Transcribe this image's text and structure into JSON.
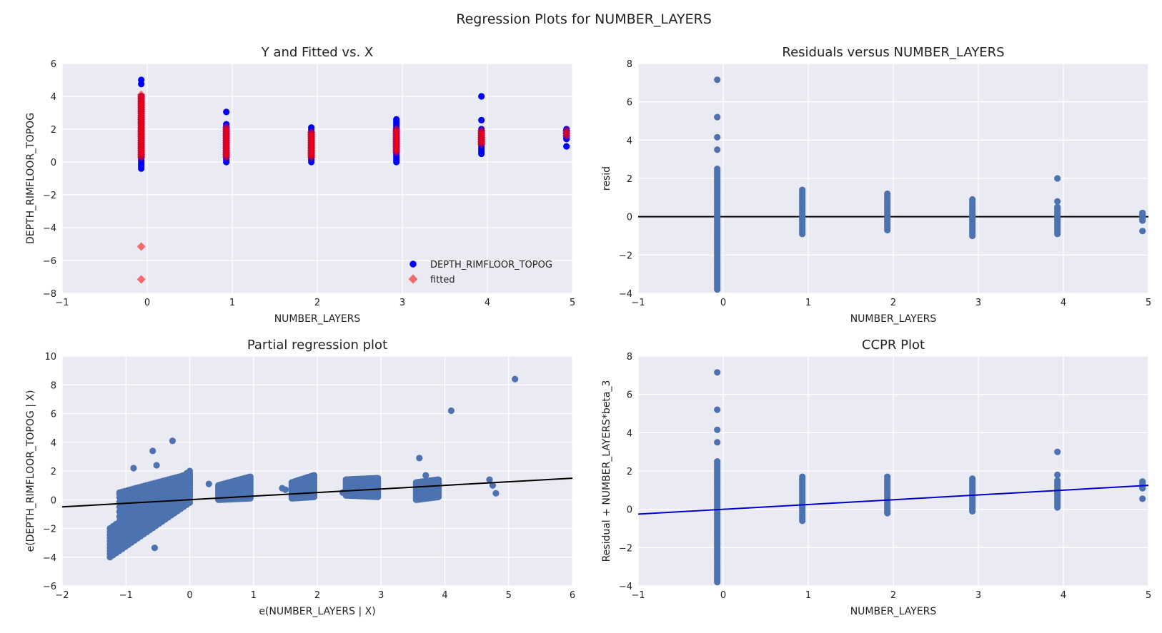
{
  "figure": {
    "title": "Regression Plots for NUMBER_LAYERS"
  },
  "colors": {
    "panel_bg": "#eaeaf2",
    "grid": "#ffffff",
    "seaborn_blue": "#4c72b0",
    "blue": "#0000ff",
    "red": "#ff0000",
    "fit_line_black": "#000000",
    "ccpr_line": "#0000cc"
  },
  "chart_data": [
    {
      "id": "y-fitted",
      "type": "scatter",
      "title": "Y and Fitted vs. X",
      "xlabel": "NUMBER_LAYERS",
      "ylabel": "DEPTH_RIMFLOOR_TOPOG",
      "xlim": [
        -1,
        5
      ],
      "ylim": [
        -8,
        6
      ],
      "xticks": [
        -1,
        0,
        1,
        2,
        3,
        4,
        5
      ],
      "yticks": [
        -8,
        -6,
        -4,
        -2,
        0,
        2,
        4,
        6
      ],
      "legend": {
        "placement": "lower-right",
        "entries": [
          "DEPTH_RIMFLOOR_TOPOG",
          "fitted"
        ]
      },
      "series": [
        {
          "name": "DEPTH_RIMFLOOR_TOPOG",
          "marker": "circle",
          "color": "#0000ff",
          "columns": [
            {
              "x": -0.07,
              "ymin": -0.4,
              "ymax": 4.0
            },
            {
              "x": 0.93,
              "ymin": 0.0,
              "ymax": 2.3
            },
            {
              "x": 1.93,
              "ymin": 0.0,
              "ymax": 2.1
            },
            {
              "x": 2.93,
              "ymin": 0.0,
              "ymax": 2.6
            },
            {
              "x": 3.93,
              "ymin": 0.5,
              "ymax": 2.0
            },
            {
              "x": 4.93,
              "ymin": 1.4,
              "ymax": 2.0
            }
          ],
          "points": [
            [
              -0.07,
              5.0
            ],
            [
              -0.07,
              4.75
            ],
            [
              0.93,
              3.05
            ],
            [
              3.93,
              4.0
            ],
            [
              3.93,
              2.55
            ],
            [
              4.93,
              0.95
            ]
          ]
        },
        {
          "name": "fitted",
          "marker": "diamond",
          "color": "#ff0000",
          "columns": [
            {
              "x": -0.07,
              "ymin": 0.3,
              "ymax": 4.1
            },
            {
              "x": 0.93,
              "ymin": 0.3,
              "ymax": 2.1
            },
            {
              "x": 1.93,
              "ymin": 0.3,
              "ymax": 1.8
            },
            {
              "x": 2.93,
              "ymin": 0.6,
              "ymax": 2.0
            },
            {
              "x": 3.93,
              "ymin": 1.1,
              "ymax": 1.9
            },
            {
              "x": 4.93,
              "ymin": 1.6,
              "ymax": 1.9
            }
          ],
          "points": [
            [
              -0.07,
              -5.15
            ],
            [
              -0.07,
              -7.15
            ]
          ]
        }
      ]
    },
    {
      "id": "residuals",
      "type": "scatter",
      "title": "Residuals versus NUMBER_LAYERS",
      "xlabel": "NUMBER_LAYERS",
      "ylabel": "resid",
      "xlim": [
        -1,
        5
      ],
      "ylim": [
        -4,
        8
      ],
      "xticks": [
        -1,
        0,
        1,
        2,
        3,
        4,
        5
      ],
      "yticks": [
        -4,
        -2,
        0,
        2,
        4,
        6,
        8
      ],
      "hline": 0,
      "series": [
        {
          "marker": "circle",
          "color": "#4c72b0",
          "columns": [
            {
              "x": -0.07,
              "ymin": -3.8,
              "ymax": 2.5
            },
            {
              "x": 0.93,
              "ymin": -0.9,
              "ymax": 1.4
            },
            {
              "x": 1.93,
              "ymin": -0.7,
              "ymax": 1.2
            },
            {
              "x": 2.93,
              "ymin": -1.0,
              "ymax": 0.9
            },
            {
              "x": 3.93,
              "ymin": -0.9,
              "ymax": 0.5
            },
            {
              "x": 4.93,
              "ymin": -0.2,
              "ymax": 0.2
            }
          ],
          "points": [
            [
              -0.07,
              7.15
            ],
            [
              -0.07,
              5.2
            ],
            [
              -0.07,
              4.15
            ],
            [
              -0.07,
              3.5
            ],
            [
              3.93,
              2.0
            ],
            [
              3.93,
              0.8
            ],
            [
              4.93,
              -0.75
            ]
          ]
        }
      ]
    },
    {
      "id": "partial-regression",
      "type": "scatter",
      "title": "Partial regression plot",
      "xlabel": "e(NUMBER_LAYERS | X)",
      "ylabel": "e(DEPTH_RIMFLOOR_TOPOG | X)",
      "xlim": [
        -2,
        6
      ],
      "ylim": [
        -6,
        10
      ],
      "xticks": [
        -2,
        -1,
        0,
        1,
        2,
        3,
        4,
        5,
        6
      ],
      "yticks": [
        -6,
        -4,
        -2,
        0,
        2,
        4,
        6,
        8,
        10
      ],
      "fit_line": {
        "x": [
          -2,
          6
        ],
        "y": [
          -0.5,
          1.5
        ]
      },
      "series": [
        {
          "marker": "circle",
          "color": "#4c72b0",
          "clusters": [
            {
              "x": [
                -1.25,
                -0.0
              ],
              "y_low": [
                -4.0,
                -0.2
              ],
              "y_high": [
                -2.0,
                2.0
              ]
            },
            {
              "x": [
                -1.1,
                -0.0
              ],
              "y_low": [
                -2.5,
                0.0
              ],
              "y_high": [
                0.5,
                1.8
              ]
            },
            {
              "x": [
                0.45,
                0.95
              ],
              "y_low": [
                0.0,
                0.1
              ],
              "y_high": [
                1.0,
                1.6
              ]
            },
            {
              "x": [
                1.6,
                1.95
              ],
              "y_low": [
                0.1,
                0.2
              ],
              "y_high": [
                1.2,
                1.7
              ]
            },
            {
              "x": [
                2.45,
                2.95
              ],
              "y_low": [
                0.3,
                0.2
              ],
              "y_high": [
                1.4,
                1.5
              ]
            },
            {
              "x": [
                3.55,
                3.9
              ],
              "y_low": [
                0.0,
                0.2
              ],
              "y_high": [
                1.2,
                1.4
              ]
            }
          ],
          "points": [
            [
              5.1,
              8.4
            ],
            [
              4.1,
              6.2
            ],
            [
              3.6,
              2.9
            ],
            [
              3.7,
              1.7
            ],
            [
              -0.27,
              4.1
            ],
            [
              -0.58,
              3.4
            ],
            [
              -0.88,
              2.2
            ],
            [
              -0.52,
              2.4
            ],
            [
              -0.55,
              -3.35
            ],
            [
              -1.1,
              0.4
            ],
            [
              -1.05,
              -0.5
            ],
            [
              0.3,
              1.1
            ],
            [
              1.5,
              0.7
            ],
            [
              1.45,
              0.8
            ],
            [
              4.7,
              1.4
            ],
            [
              4.75,
              1.0
            ],
            [
              4.8,
              0.45
            ],
            [
              0.6,
              0.8
            ],
            [
              0.55,
              0.3
            ],
            [
              2.4,
              0.5
            ],
            [
              2.45,
              0.7
            ]
          ]
        }
      ]
    },
    {
      "id": "ccpr",
      "type": "scatter",
      "title": "CCPR Plot",
      "xlabel": "NUMBER_LAYERS",
      "ylabel": "Residual + NUMBER_LAYERS*beta_3",
      "xlim": [
        -1,
        5
      ],
      "ylim": [
        -4,
        8
      ],
      "xticks": [
        -1,
        0,
        1,
        2,
        3,
        4,
        5
      ],
      "yticks": [
        -4,
        -2,
        0,
        2,
        4,
        6,
        8
      ],
      "fit_line": {
        "x": [
          -1,
          5
        ],
        "y": [
          -0.25,
          1.25
        ]
      },
      "series": [
        {
          "marker": "circle",
          "color": "#4c72b0",
          "columns": [
            {
              "x": -0.07,
              "ymin": -3.8,
              "ymax": 2.5
            },
            {
              "x": 0.93,
              "ymin": -0.6,
              "ymax": 1.7
            },
            {
              "x": 1.93,
              "ymin": -0.2,
              "ymax": 1.7
            },
            {
              "x": 2.93,
              "ymin": -0.1,
              "ymax": 1.6
            },
            {
              "x": 3.93,
              "ymin": 0.1,
              "ymax": 1.5
            },
            {
              "x": 4.93,
              "ymin": 1.1,
              "ymax": 1.45
            }
          ],
          "points": [
            [
              -0.07,
              7.15
            ],
            [
              -0.07,
              5.2
            ],
            [
              -0.07,
              4.15
            ],
            [
              -0.07,
              3.5
            ],
            [
              3.93,
              3.0
            ],
            [
              3.93,
              1.8
            ],
            [
              4.93,
              0.55
            ]
          ]
        }
      ]
    }
  ]
}
